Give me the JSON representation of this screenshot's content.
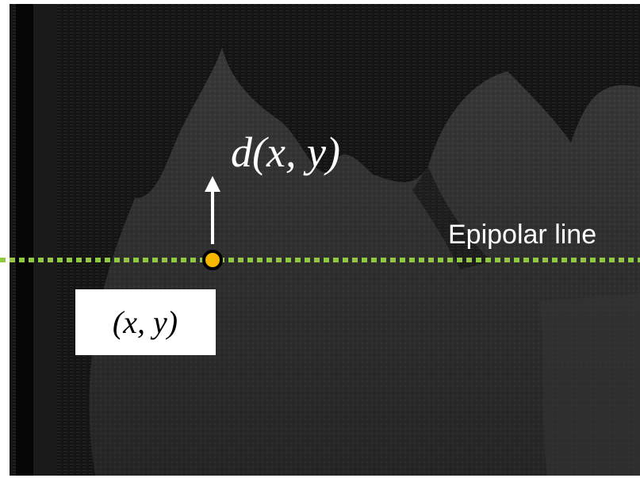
{
  "annotations": {
    "disparity_label": "d(x, y)",
    "line_label": "Epipolar line",
    "point_label": "(x, y)"
  }
}
